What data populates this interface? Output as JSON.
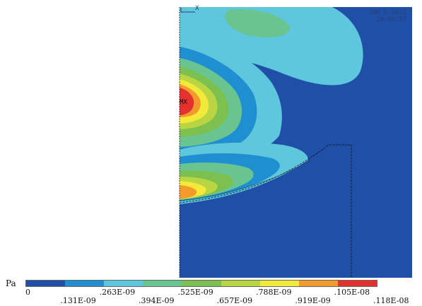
{
  "viewer": {
    "date": "JUN  5 2013",
    "time": "10:00:57",
    "max_marker": "MX",
    "axis_marker": "X"
  },
  "legend": {
    "unit": "Pa",
    "colors": [
      "#1f4fa6",
      "#1f8fd2",
      "#5ec7dd",
      "#69c48f",
      "#7cc04f",
      "#b9d541",
      "#f3e93a",
      "#f39a2c",
      "#e2312e"
    ],
    "upper_labels": [
      "0",
      ".263E-09",
      ".525E-09",
      ".788E-09",
      ".105E-08"
    ],
    "lower_labels": [
      ".131E-09",
      ".394E-09",
      ".657E-09",
      ".919E-09",
      ".118E-08"
    ]
  }
}
